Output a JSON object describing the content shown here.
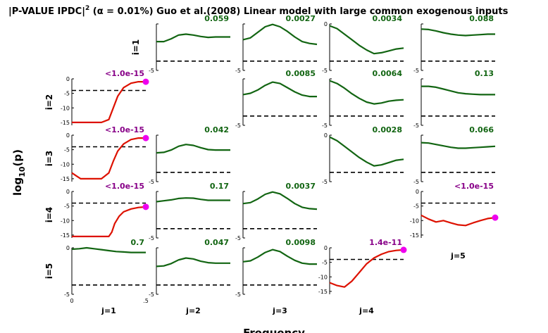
{
  "title": {
    "prefix": "|P-VALUE IPDC|",
    "sup": "2",
    "rest": " (α = 0.01%) Guo et al.(2008) Linear model with large common exogenous inputs"
  },
  "ylabel_main": "log",
  "ylabel_sub": "10",
  "ylabel_end": "(p)",
  "xlabel": "Frequency",
  "colors": {
    "significant": "#dd1100",
    "not_significant": "#126512",
    "threshold": "#000000",
    "marker": "#ee00ee",
    "pval_significant": "#880088",
    "pval_not_significant": "#126512"
  },
  "chart_data": [
    {
      "type": "line",
      "row": 1,
      "col": 2,
      "pvalue_label": "0.059",
      "significant": false,
      "ylim": [
        -5,
        0
      ],
      "yticks": [
        "",
        "-5"
      ],
      "threshold": -4,
      "x": [
        0,
        0.05,
        0.1,
        0.15,
        0.2,
        0.25,
        0.3,
        0.35,
        0.4,
        0.45,
        0.5
      ],
      "y": [
        -1.9,
        -1.9,
        -1.6,
        -1.2,
        -1.1,
        -1.2,
        -1.35,
        -1.45,
        -1.4,
        -1.4,
        -1.4
      ]
    },
    {
      "type": "line",
      "row": 1,
      "col": 3,
      "pvalue_label": "0.0027",
      "significant": false,
      "ylim": [
        -5,
        0
      ],
      "yticks": [
        "",
        "-5"
      ],
      "threshold": -4,
      "x": [
        0,
        0.05,
        0.1,
        0.15,
        0.2,
        0.25,
        0.3,
        0.35,
        0.4,
        0.45,
        0.5
      ],
      "y": [
        -1.7,
        -1.5,
        -0.9,
        -0.3,
        -0.05,
        -0.3,
        -0.8,
        -1.4,
        -1.9,
        -2.1,
        -2.2
      ]
    },
    {
      "type": "line",
      "row": 1,
      "col": 4,
      "pvalue_label": "0.0034",
      "significant": false,
      "ylim": [
        -5,
        0
      ],
      "yticks": [
        "0",
        "-5"
      ],
      "threshold": -4,
      "x": [
        0,
        0.05,
        0.1,
        0.15,
        0.2,
        0.25,
        0.3,
        0.35,
        0.4,
        0.45,
        0.5
      ],
      "y": [
        -0.2,
        -0.5,
        -1.1,
        -1.7,
        -2.3,
        -2.8,
        -3.2,
        -3.1,
        -2.9,
        -2.7,
        -2.6
      ]
    },
    {
      "type": "line",
      "row": 1,
      "col": 5,
      "pvalue_label": "0.088",
      "significant": false,
      "ylim": [
        -5,
        0
      ],
      "yticks": [
        "",
        "-5"
      ],
      "threshold": -4,
      "x": [
        0,
        0.05,
        0.1,
        0.15,
        0.2,
        0.25,
        0.3,
        0.35,
        0.4,
        0.45,
        0.5
      ],
      "y": [
        -0.55,
        -0.6,
        -0.75,
        -0.95,
        -1.1,
        -1.2,
        -1.25,
        -1.2,
        -1.15,
        -1.1,
        -1.1
      ]
    },
    {
      "type": "line",
      "row": 2,
      "col": 1,
      "pvalue_label": "<1.0e-15",
      "significant": true,
      "marker": true,
      "ylim": [
        -16,
        0
      ],
      "yticks": [
        "0",
        "-5",
        "-10",
        "-15"
      ],
      "threshold": -4,
      "x": [
        0,
        0.05,
        0.1,
        0.15,
        0.2,
        0.25,
        0.28,
        0.31,
        0.35,
        0.4,
        0.45,
        0.5
      ],
      "y": [
        -15,
        -15,
        -15,
        -15,
        -15,
        -14,
        -10,
        -6,
        -3,
        -1.5,
        -1,
        -1
      ]
    },
    {
      "type": "line",
      "row": 2,
      "col": 3,
      "pvalue_label": "0.0085",
      "significant": false,
      "ylim": [
        -5,
        0
      ],
      "yticks": [
        "",
        "-5"
      ],
      "threshold": -4,
      "x": [
        0,
        0.05,
        0.1,
        0.15,
        0.2,
        0.25,
        0.3,
        0.35,
        0.4,
        0.45,
        0.5
      ],
      "y": [
        -1.7,
        -1.55,
        -1.2,
        -0.7,
        -0.35,
        -0.5,
        -0.95,
        -1.4,
        -1.75,
        -1.9,
        -1.9
      ]
    },
    {
      "type": "line",
      "row": 2,
      "col": 4,
      "pvalue_label": "0.0064",
      "significant": false,
      "ylim": [
        -5,
        0
      ],
      "yticks": [
        "",
        "-5"
      ],
      "threshold": -4,
      "x": [
        0,
        0.05,
        0.1,
        0.15,
        0.2,
        0.25,
        0.3,
        0.35,
        0.4,
        0.45,
        0.5
      ],
      "y": [
        -0.2,
        -0.5,
        -1.0,
        -1.6,
        -2.1,
        -2.5,
        -2.7,
        -2.6,
        -2.4,
        -2.3,
        -2.25
      ]
    },
    {
      "type": "line",
      "row": 2,
      "col": 5,
      "pvalue_label": "0.13",
      "significant": false,
      "ylim": [
        -5,
        0
      ],
      "yticks": [
        "",
        "-5"
      ],
      "threshold": -4,
      "x": [
        0,
        0.05,
        0.1,
        0.15,
        0.2,
        0.25,
        0.3,
        0.35,
        0.4,
        0.45,
        0.5
      ],
      "y": [
        -0.8,
        -0.8,
        -0.9,
        -1.1,
        -1.3,
        -1.5,
        -1.6,
        -1.65,
        -1.7,
        -1.7,
        -1.7
      ]
    },
    {
      "type": "line",
      "row": 3,
      "col": 1,
      "pvalue_label": "<1.0e-15",
      "significant": true,
      "marker": true,
      "ylim": [
        -16,
        0
      ],
      "yticks": [
        "0",
        "-5",
        "-10",
        "-15"
      ],
      "threshold": -4,
      "x": [
        0,
        0.03,
        0.06,
        0.1,
        0.15,
        0.2,
        0.25,
        0.28,
        0.31,
        0.35,
        0.4,
        0.45,
        0.5
      ],
      "y": [
        -13,
        -14,
        -15,
        -15,
        -15,
        -15,
        -13,
        -9,
        -5.5,
        -3,
        -1.5,
        -1,
        -1
      ]
    },
    {
      "type": "line",
      "row": 3,
      "col": 2,
      "pvalue_label": "0.042",
      "significant": false,
      "ylim": [
        -5,
        0
      ],
      "yticks": [
        "",
        "-5"
      ],
      "threshold": -4,
      "x": [
        0,
        0.05,
        0.1,
        0.15,
        0.2,
        0.25,
        0.3,
        0.35,
        0.4,
        0.45,
        0.5
      ],
      "y": [
        -1.9,
        -1.85,
        -1.6,
        -1.2,
        -1.0,
        -1.1,
        -1.35,
        -1.55,
        -1.6,
        -1.6,
        -1.6
      ]
    },
    {
      "type": "line",
      "row": 3,
      "col": 4,
      "pvalue_label": "0.0028",
      "significant": false,
      "ylim": [
        -5,
        0
      ],
      "yticks": [
        "0",
        "-5"
      ],
      "threshold": -4,
      "x": [
        0,
        0.05,
        0.1,
        0.15,
        0.2,
        0.25,
        0.3,
        0.35,
        0.4,
        0.45,
        0.5
      ],
      "y": [
        -0.2,
        -0.6,
        -1.2,
        -1.8,
        -2.4,
        -2.9,
        -3.3,
        -3.2,
        -2.95,
        -2.7,
        -2.6
      ]
    },
    {
      "type": "line",
      "row": 3,
      "col": 5,
      "pvalue_label": "0.066",
      "significant": false,
      "ylim": [
        -5,
        0
      ],
      "yticks": [
        "",
        "-5"
      ],
      "threshold": -4,
      "x": [
        0,
        0.05,
        0.1,
        0.15,
        0.2,
        0.25,
        0.3,
        0.35,
        0.4,
        0.45,
        0.5
      ],
      "y": [
        -0.8,
        -0.85,
        -1.0,
        -1.15,
        -1.3,
        -1.4,
        -1.4,
        -1.35,
        -1.3,
        -1.25,
        -1.2
      ]
    },
    {
      "type": "line",
      "row": 4,
      "col": 1,
      "pvalue_label": "<1.0e-15",
      "significant": true,
      "marker": true,
      "ylim": [
        -16,
        0
      ],
      "yticks": [
        "0",
        "-5",
        "-10",
        "-15"
      ],
      "threshold": -4,
      "x": [
        0,
        0.05,
        0.1,
        0.15,
        0.2,
        0.25,
        0.27,
        0.29,
        0.32,
        0.35,
        0.4,
        0.45,
        0.5
      ],
      "y": [
        -15.5,
        -15.5,
        -15.5,
        -15.5,
        -15.5,
        -15.5,
        -14,
        -11,
        -8.5,
        -7,
        -6,
        -5.5,
        -5.3
      ]
    },
    {
      "type": "line",
      "row": 4,
      "col": 2,
      "pvalue_label": "0.17",
      "significant": false,
      "ylim": [
        -5,
        0
      ],
      "yticks": [
        "",
        "-5"
      ],
      "threshold": -4,
      "x": [
        0,
        0.05,
        0.1,
        0.15,
        0.2,
        0.25,
        0.3,
        0.35,
        0.4,
        0.45,
        0.5
      ],
      "y": [
        -1.1,
        -1.0,
        -0.9,
        -0.75,
        -0.7,
        -0.72,
        -0.85,
        -0.95,
        -0.95,
        -0.95,
        -0.95
      ]
    },
    {
      "type": "line",
      "row": 4,
      "col": 3,
      "pvalue_label": "0.0037",
      "significant": false,
      "ylim": [
        -5,
        0
      ],
      "yticks": [
        "",
        "-5"
      ],
      "threshold": -4,
      "x": [
        0,
        0.05,
        0.1,
        0.15,
        0.2,
        0.25,
        0.3,
        0.35,
        0.4,
        0.45,
        0.5
      ],
      "y": [
        -1.3,
        -1.2,
        -0.8,
        -0.3,
        -0.05,
        -0.25,
        -0.75,
        -1.3,
        -1.7,
        -1.85,
        -1.9
      ]
    },
    {
      "type": "line",
      "row": 4,
      "col": 5,
      "pvalue_label": "<1.0e-15",
      "significant": true,
      "marker": true,
      "ylim": [
        -16,
        0
      ],
      "yticks": [
        "0",
        "-5",
        "-10",
        "-15"
      ],
      "threshold": -4,
      "x": [
        0,
        0.05,
        0.1,
        0.15,
        0.2,
        0.25,
        0.3,
        0.35,
        0.4,
        0.45,
        0.5
      ],
      "y": [
        -8.2,
        -9.5,
        -10.5,
        -10,
        -10.8,
        -11.5,
        -11.7,
        -10.8,
        -10,
        -9.3,
        -9
      ]
    },
    {
      "type": "line",
      "row": 5,
      "col": 1,
      "pvalue_label": "0.7",
      "significant": false,
      "ylim": [
        -5,
        0
      ],
      "yticks": [
        "0",
        "-5"
      ],
      "threshold": -4,
      "x": [
        0,
        0.05,
        0.1,
        0.15,
        0.2,
        0.25,
        0.3,
        0.35,
        0.4,
        0.45,
        0.5
      ],
      "y": [
        -0.15,
        -0.1,
        0.0,
        -0.1,
        -0.2,
        -0.3,
        -0.4,
        -0.45,
        -0.5,
        -0.5,
        -0.5
      ]
    },
    {
      "type": "line",
      "row": 5,
      "col": 2,
      "pvalue_label": "0.047",
      "significant": false,
      "ylim": [
        -5,
        0
      ],
      "yticks": [
        "",
        "-5"
      ],
      "threshold": -4,
      "x": [
        0,
        0.05,
        0.1,
        0.15,
        0.2,
        0.25,
        0.3,
        0.35,
        0.4,
        0.45,
        0.5
      ],
      "y": [
        -2.0,
        -1.95,
        -1.7,
        -1.3,
        -1.1,
        -1.2,
        -1.45,
        -1.6,
        -1.65,
        -1.65,
        -1.65
      ]
    },
    {
      "type": "line",
      "row": 5,
      "col": 3,
      "pvalue_label": "0.0098",
      "significant": false,
      "ylim": [
        -5,
        0
      ],
      "yticks": [
        "",
        "-5"
      ],
      "threshold": -4,
      "x": [
        0,
        0.05,
        0.1,
        0.15,
        0.2,
        0.25,
        0.3,
        0.35,
        0.4,
        0.45,
        0.5
      ],
      "y": [
        -1.5,
        -1.4,
        -1.0,
        -0.5,
        -0.2,
        -0.4,
        -0.9,
        -1.35,
        -1.65,
        -1.75,
        -1.75
      ]
    },
    {
      "type": "line",
      "row": 5,
      "col": 4,
      "pvalue_label": "1.4e-11",
      "significant": true,
      "marker": true,
      "ylim": [
        -16,
        0
      ],
      "yticks": [
        "0",
        "-5",
        "-10",
        "-15"
      ],
      "threshold": -4,
      "x": [
        0,
        0.05,
        0.1,
        0.15,
        0.2,
        0.25,
        0.3,
        0.35,
        0.4,
        0.45,
        0.5
      ],
      "y": [
        -12,
        -13,
        -13.5,
        -11.5,
        -8.5,
        -5.5,
        -3.5,
        -2.2,
        -1.3,
        -0.9,
        -0.7
      ]
    }
  ],
  "row_labels": [
    "i=1",
    "i=2",
    "i=3",
    "i=4",
    "i=5"
  ],
  "col_labels": [
    "j=1",
    "j=2",
    "j=3",
    "j=4",
    "j=5"
  ],
  "xtick_labels": [
    "0",
    ".5"
  ]
}
